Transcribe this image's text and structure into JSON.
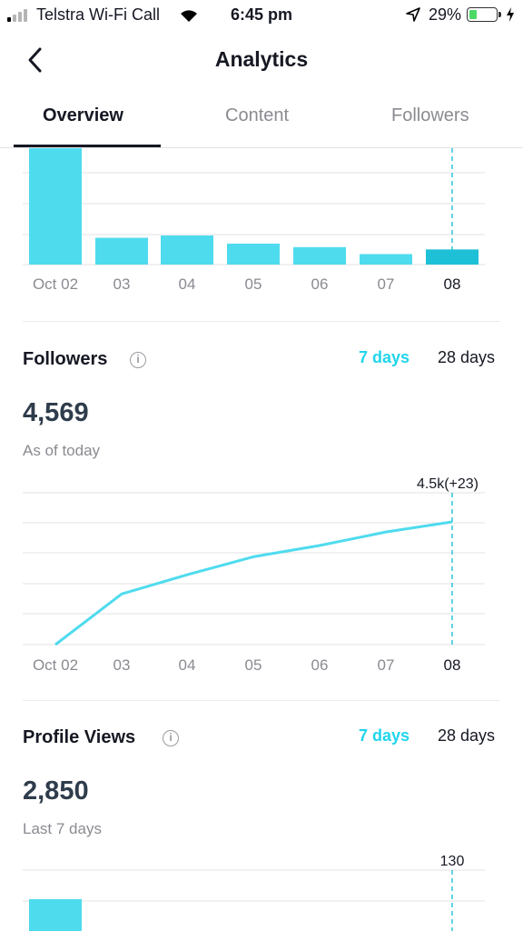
{
  "status_bar": {
    "carrier": "Telstra Wi-Fi Call",
    "time": "6:45 pm",
    "battery": "29%"
  },
  "header": {
    "title": "Analytics"
  },
  "tabs": [
    {
      "label": "Overview"
    },
    {
      "label": "Content"
    },
    {
      "label": "Followers"
    }
  ],
  "video_views_chart": {
    "categories": [
      "Oct 02",
      "03",
      "04",
      "05",
      "06",
      "07",
      "08"
    ],
    "values": [
      100,
      23,
      25,
      18,
      15,
      9,
      13
    ]
  },
  "followers": {
    "title": "Followers",
    "range_7": "7 days",
    "range_28": "28 days",
    "count": "4,569",
    "caption": "As of today",
    "tooltip": "4.5k(+23)"
  },
  "profile_views": {
    "title": "Profile Views",
    "range_7": "7 days",
    "range_28": "28 days",
    "count": "2,850",
    "caption": "Last 7 days",
    "tooltip": "130"
  },
  "chart_data": [
    {
      "type": "bar",
      "categories": [
        "Oct 02",
        "03",
        "04",
        "05",
        "06",
        "07",
        "08"
      ],
      "values": [
        100,
        23,
        25,
        18,
        15,
        9,
        13
      ],
      "highlight": "08"
    },
    {
      "type": "line",
      "categories": [
        "Oct 02",
        "03",
        "04",
        "05",
        "06",
        "07",
        "08"
      ],
      "values": [
        4460,
        4505,
        4522,
        4538,
        4548,
        4560,
        4569
      ],
      "annotation": "4.5k(+23)",
      "colors": {
        "line": "#4fdbee"
      }
    }
  ]
}
